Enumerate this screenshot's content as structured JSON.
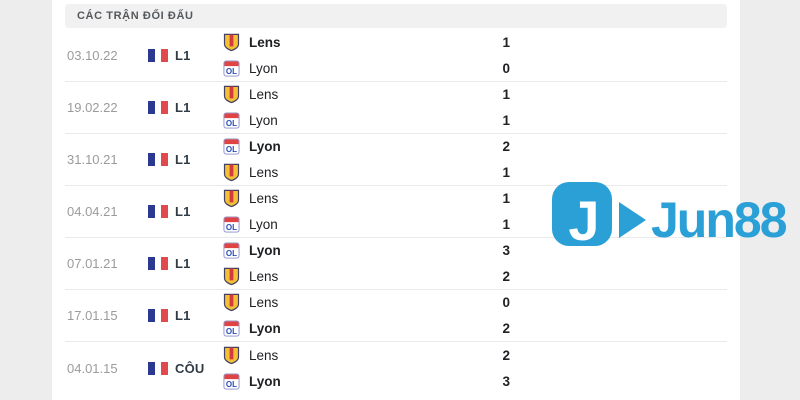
{
  "header": {
    "title": "CÁC TRẬN ĐỐI ĐẤU"
  },
  "watermark": {
    "brand": "Jun88",
    "icon_letter": "J",
    "color": "#2ba0d6"
  },
  "colors": {
    "accent_blue": "#2ba0d6",
    "flag_blue": "#2b3990",
    "flag_red": "#e04a4f",
    "lens_gold": "#f2c234",
    "lens_red": "#d43a40",
    "lyon_red": "#e04343",
    "lyon_blue": "#2b4bb5",
    "header_bg": "#f1f1f1",
    "date_gray": "#9b9b9b"
  },
  "matches": [
    {
      "date": "03.10.22",
      "competition": "L1",
      "teams": [
        {
          "name": "Lens",
          "crest": "lens",
          "score": "1",
          "winner": true
        },
        {
          "name": "Lyon",
          "crest": "lyon",
          "score": "0",
          "winner": false
        }
      ]
    },
    {
      "date": "19.02.22",
      "competition": "L1",
      "teams": [
        {
          "name": "Lens",
          "crest": "lens",
          "score": "1",
          "winner": false
        },
        {
          "name": "Lyon",
          "crest": "lyon",
          "score": "1",
          "winner": false
        }
      ]
    },
    {
      "date": "31.10.21",
      "competition": "L1",
      "teams": [
        {
          "name": "Lyon",
          "crest": "lyon",
          "score": "2",
          "winner": true
        },
        {
          "name": "Lens",
          "crest": "lens",
          "score": "1",
          "winner": false
        }
      ]
    },
    {
      "date": "04.04.21",
      "competition": "L1",
      "teams": [
        {
          "name": "Lens",
          "crest": "lens",
          "score": "1",
          "winner": false
        },
        {
          "name": "Lyon",
          "crest": "lyon",
          "score": "1",
          "winner": false
        }
      ]
    },
    {
      "date": "07.01.21",
      "competition": "L1",
      "teams": [
        {
          "name": "Lyon",
          "crest": "lyon",
          "score": "3",
          "winner": true
        },
        {
          "name": "Lens",
          "crest": "lens",
          "score": "2",
          "winner": false
        }
      ]
    },
    {
      "date": "17.01.15",
      "competition": "L1",
      "teams": [
        {
          "name": "Lens",
          "crest": "lens",
          "score": "0",
          "winner": false
        },
        {
          "name": "Lyon",
          "crest": "lyon",
          "score": "2",
          "winner": true
        }
      ]
    },
    {
      "date": "04.01.15",
      "competition": "CÔU",
      "teams": [
        {
          "name": "Lens",
          "crest": "lens",
          "score": "2",
          "winner": false
        },
        {
          "name": "Lyon",
          "crest": "lyon",
          "score": "3",
          "winner": true
        }
      ]
    }
  ]
}
